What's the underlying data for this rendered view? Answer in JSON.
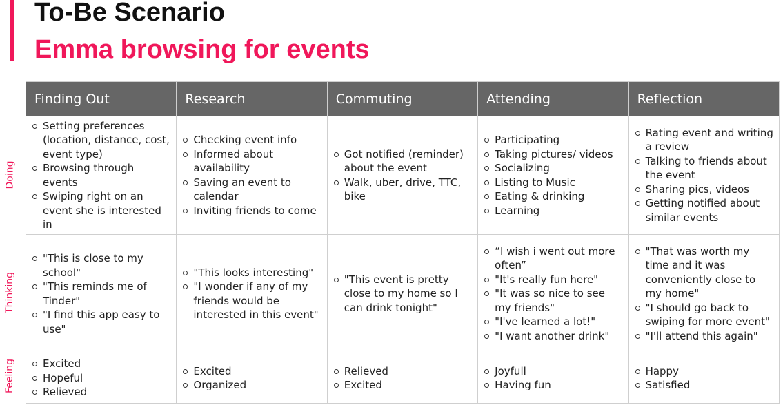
{
  "title": "To-Be Scenario",
  "subtitle": "Emma browsing for events",
  "columns": [
    "Finding Out",
    "Research",
    "Commuting",
    "Attending",
    "Reflection"
  ],
  "rows": [
    {
      "label": "Doing",
      "cells": [
        [
          "Setting preferences (location, distance, cost, event type)",
          "Browsing through events",
          "Swiping right on an event she is interested in"
        ],
        [
          "Checking event info",
          "Informed about availability",
          "Saving an event to calendar",
          "Inviting friends to come"
        ],
        [
          "Got notified (reminder) about the event",
          "Walk, uber, drive, TTC, bike"
        ],
        [
          "Participating",
          "Taking pictures/ videos",
          "Socializing",
          "Listing to Music",
          "Eating & drinking",
          "Learning"
        ],
        [
          "Rating event and writing a review",
          "Talking to friends about the event",
          "Sharing pics, videos",
          "Getting notified about similar events"
        ]
      ]
    },
    {
      "label": "Thinking",
      "cells": [
        [
          "\"This is close to my school\"",
          "\"This reminds me of Tinder\"",
          "\"I find this app easy to use\""
        ],
        [
          "\"This looks interesting\"",
          "\"I wonder if any of my friends would be interested in this event\""
        ],
        [
          "\"This event is pretty close to my home so I can drink tonight\""
        ],
        [
          "“I wish i went out more often”",
          " \"It's really fun here\"",
          "\"It was so nice to see my friends\"",
          "\"I've learned a lot!\"",
          "\"I want another drink\""
        ],
        [
          "\"That was worth my time and it was conveniently close to my home\"",
          "\"I should go back to swiping for more event\"",
          "\"I'll attend this again\""
        ]
      ]
    },
    {
      "label": "Feeling",
      "cells": [
        [
          "Excited",
          "Hopeful",
          "Relieved"
        ],
        [
          "Excited",
          "Organized"
        ],
        [
          "Relieved",
          "Excited"
        ],
        [
          "Joyfull",
          "Having fun"
        ],
        [
          "Happy",
          "Satisfied"
        ]
      ]
    }
  ],
  "colors": {
    "accent": "#f0175a",
    "header_bg": "#666666",
    "grid": "#cfcfcf"
  }
}
